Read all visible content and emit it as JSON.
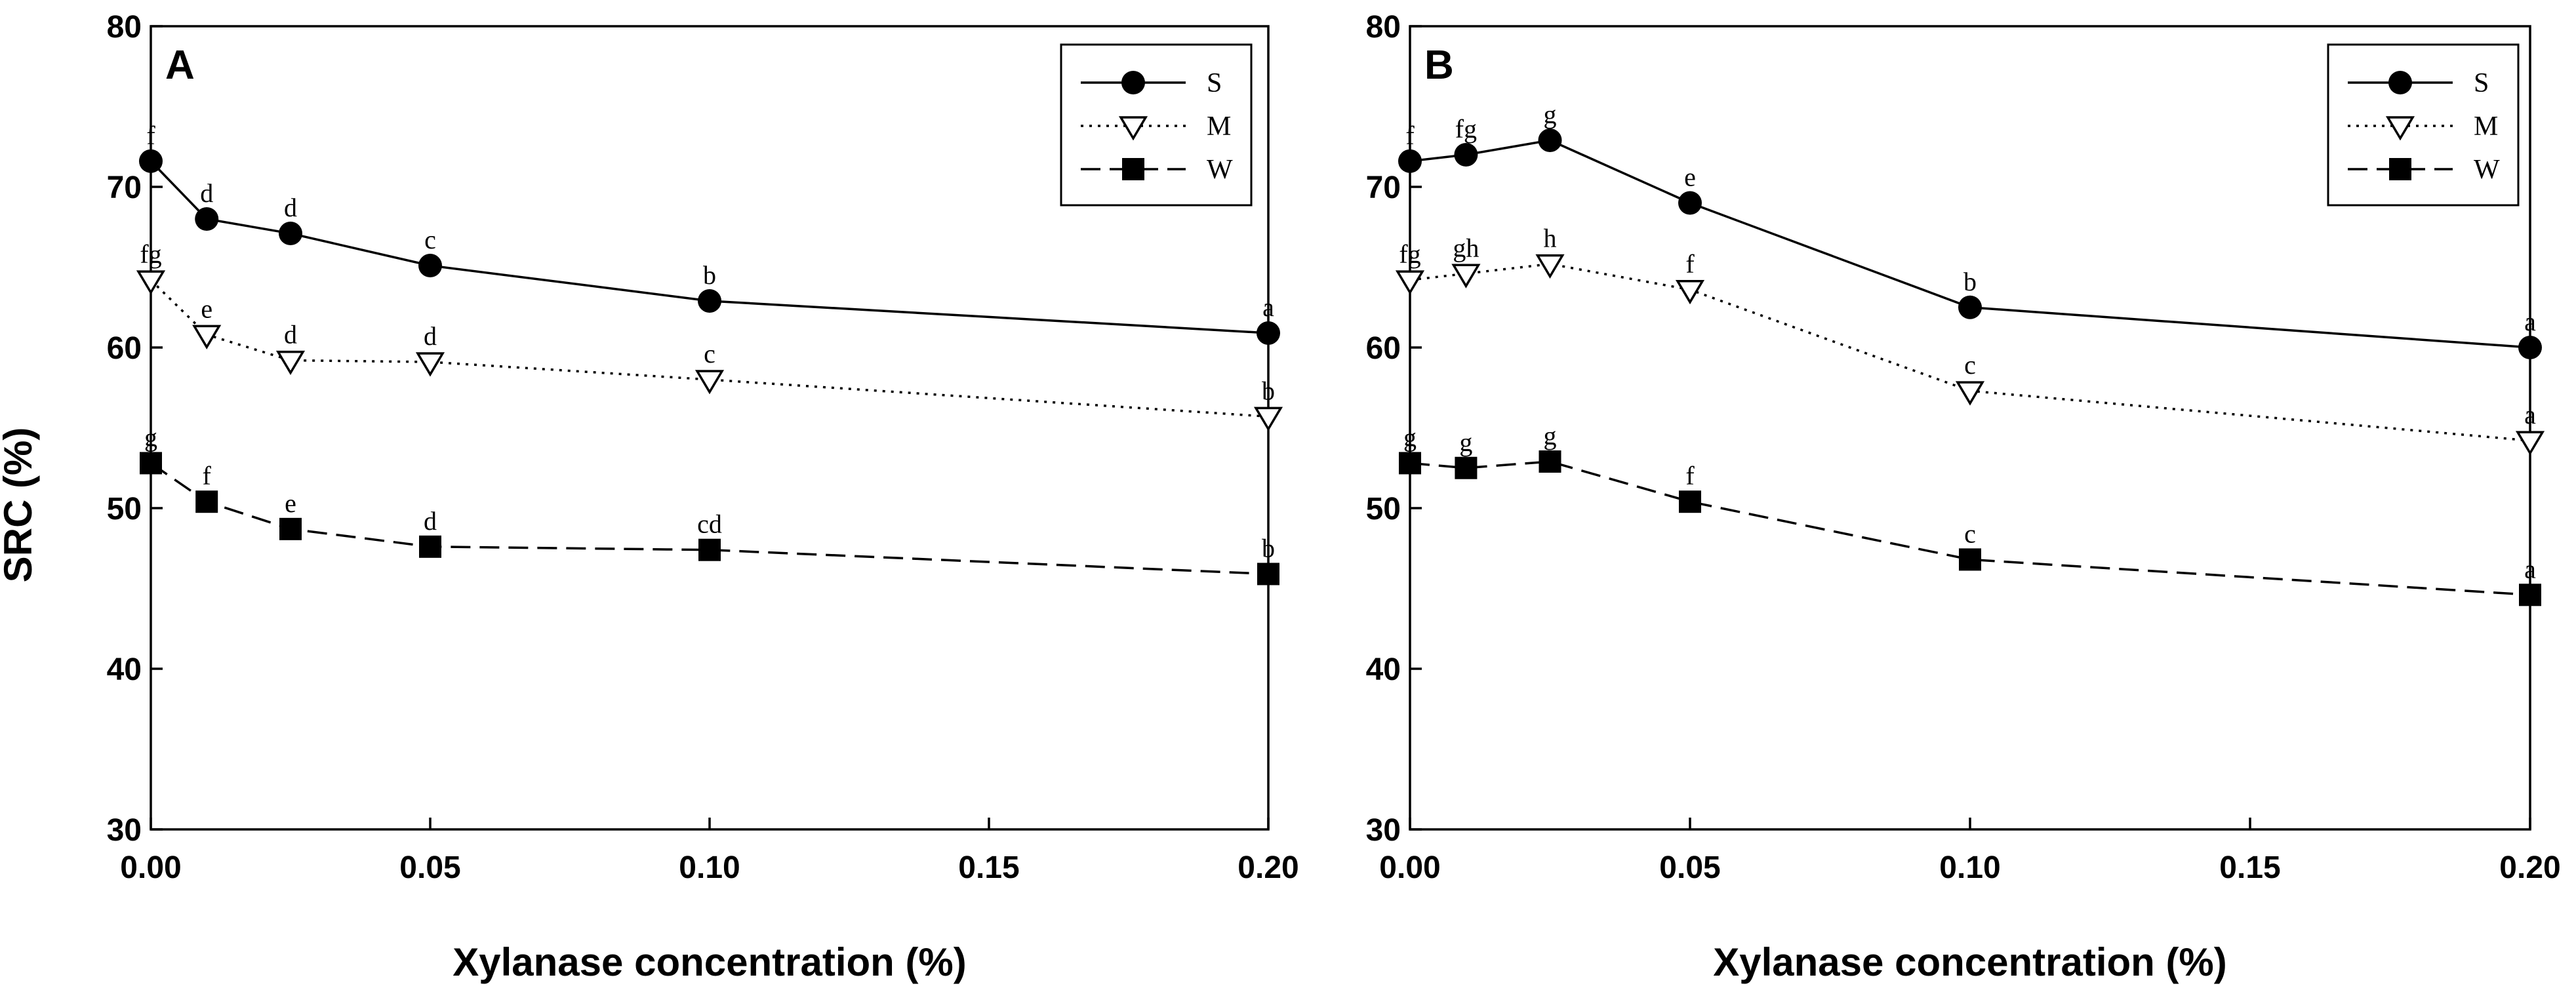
{
  "y_axis_title": "SRC (%)",
  "chart_data": [
    {
      "type": "line",
      "panel_label": "A",
      "xlabel": "Xylanase concentration (%)",
      "ylabel": "SRC (%)",
      "xlim": [
        0.0,
        0.2
      ],
      "ylim": [
        30,
        80
      ],
      "x_ticks": [
        "0.00",
        "0.05",
        "0.10",
        "0.15",
        "0.20"
      ],
      "y_ticks": [
        "30",
        "40",
        "50",
        "60",
        "70",
        "80"
      ],
      "legend_position": "top-right",
      "x": [
        0.0,
        0.01,
        0.025,
        0.05,
        0.1,
        0.2
      ],
      "series": [
        {
          "name": "S",
          "marker": "circle",
          "line": "solid",
          "values": [
            71.6,
            68.0,
            67.1,
            65.1,
            62.9,
            60.9
          ],
          "letters": [
            "f",
            "d",
            "d",
            "c",
            "b",
            "a"
          ]
        },
        {
          "name": "M",
          "marker": "triangle-down",
          "line": "dotted",
          "values": [
            64.2,
            60.8,
            59.2,
            59.1,
            58.0,
            55.7
          ],
          "letters": [
            "fg",
            "e",
            "d",
            "d",
            "c",
            "b"
          ]
        },
        {
          "name": "W",
          "marker": "square",
          "line": "dashed",
          "values": [
            52.8,
            50.4,
            48.7,
            47.6,
            47.4,
            45.9
          ],
          "letters": [
            "g",
            "f",
            "e",
            "d",
            "cd",
            "b"
          ]
        }
      ]
    },
    {
      "type": "line",
      "panel_label": "B",
      "xlabel": "Xylanase concentration (%)",
      "ylabel": "",
      "xlim": [
        0.0,
        0.2
      ],
      "ylim": [
        30,
        80
      ],
      "x_ticks": [
        "0.00",
        "0.05",
        "0.10",
        "0.15",
        "0.20"
      ],
      "y_ticks": [
        "30",
        "40",
        "50",
        "60",
        "70",
        "80"
      ],
      "legend_position": "top-right",
      "x": [
        0.0,
        0.01,
        0.025,
        0.05,
        0.1,
        0.2
      ],
      "series": [
        {
          "name": "S",
          "marker": "circle",
          "line": "solid",
          "values": [
            71.6,
            72.0,
            72.9,
            69.0,
            62.5,
            60.0
          ],
          "letters": [
            "f",
            "fg",
            "g",
            "e",
            "b",
            "a"
          ]
        },
        {
          "name": "M",
          "marker": "triangle-down",
          "line": "dotted",
          "values": [
            64.2,
            64.6,
            65.2,
            63.6,
            57.3,
            54.2
          ],
          "letters": [
            "fg",
            "gh",
            "h",
            "f",
            "c",
            "a"
          ]
        },
        {
          "name": "W",
          "marker": "square",
          "line": "dashed",
          "values": [
            52.8,
            52.5,
            52.9,
            50.4,
            46.8,
            44.6
          ],
          "letters": [
            "g",
            "g",
            "g",
            "f",
            "c",
            "a"
          ]
        }
      ]
    }
  ]
}
